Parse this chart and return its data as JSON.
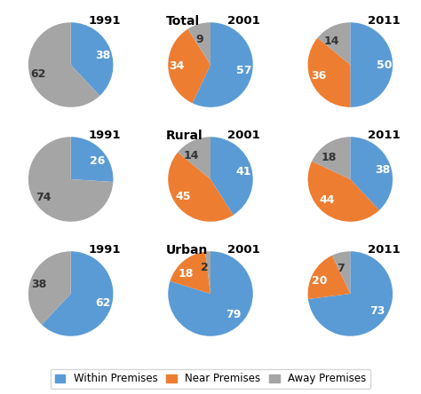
{
  "rows": [
    "Total",
    "Rural",
    "Urban"
  ],
  "years": [
    "1991",
    "2001",
    "2011"
  ],
  "colors": {
    "within": "#5B9BD5",
    "near": "#ED7D31",
    "away": "#A5A5A5"
  },
  "data": {
    "Total": {
      "1991": {
        "within": 38,
        "near": 0,
        "away": 62
      },
      "2001": {
        "within": 57,
        "near": 34,
        "away": 9
      },
      "2011": {
        "within": 50,
        "near": 36,
        "away": 14
      }
    },
    "Rural": {
      "1991": {
        "within": 26,
        "near": 0,
        "away": 74
      },
      "2001": {
        "within": 41,
        "near": 45,
        "away": 14
      },
      "2011": {
        "within": 38,
        "near": 44,
        "away": 18
      }
    },
    "Urban": {
      "1991": {
        "within": 62,
        "near": 0,
        "away": 38
      },
      "2001": {
        "within": 79,
        "near": 18,
        "away": 2
      },
      "2011": {
        "within": 73,
        "near": 20,
        "away": 7
      }
    }
  },
  "row_labels": {
    "Total": "Total",
    "Rural": "Rural",
    "Urban": "Urban"
  },
  "legend_labels": [
    "Within Premises",
    "Near Premises",
    "Away Premises"
  ],
  "title_fontsize": 9.5,
  "label_fontsize": 9,
  "row_label_fontsize": 10,
  "legend_fontsize": 8.5
}
